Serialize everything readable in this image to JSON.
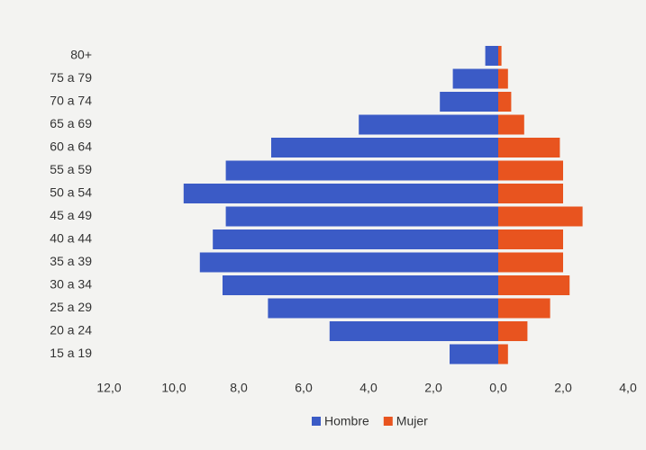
{
  "chart_data": {
    "type": "pyramid",
    "categories": [
      "80+",
      "75 a 79",
      "70 a 74",
      "65 a 69",
      "60 a 64",
      "55 a 59",
      "50 a 54",
      "45 a 49",
      "40 a 44",
      "35 a 39",
      "30 a 34",
      "25 a 29",
      "20 a 24",
      "15 a 19"
    ],
    "series": [
      {
        "name": "Hombre",
        "color": "#3b5bc6",
        "side": "left",
        "values": [
          0.4,
          1.4,
          1.8,
          4.3,
          7.0,
          8.4,
          9.7,
          8.4,
          8.8,
          9.2,
          8.5,
          7.1,
          5.2,
          1.5
        ]
      },
      {
        "name": "Mujer",
        "color": "#e8541f",
        "side": "right",
        "values": [
          0.1,
          0.3,
          0.4,
          0.8,
          1.9,
          2.0,
          2.0,
          2.6,
          2.0,
          2.0,
          2.2,
          1.6,
          0.9,
          0.3
        ]
      }
    ],
    "xlim_left": [
      0,
      12
    ],
    "xlim_right": [
      0,
      4
    ],
    "xticks_left": [
      {
        "value": 12,
        "label": "12,0"
      },
      {
        "value": 10,
        "label": "10,0"
      },
      {
        "value": 8,
        "label": "8,0"
      },
      {
        "value": 6,
        "label": "6,0"
      },
      {
        "value": 4,
        "label": "4,0"
      },
      {
        "value": 2,
        "label": "2,0"
      },
      {
        "value": 0,
        "label": "0,0"
      }
    ],
    "xticks_right": [
      {
        "value": 2,
        "label": "2,0"
      },
      {
        "value": 4,
        "label": "4,0"
      }
    ],
    "legend": "bottom"
  }
}
